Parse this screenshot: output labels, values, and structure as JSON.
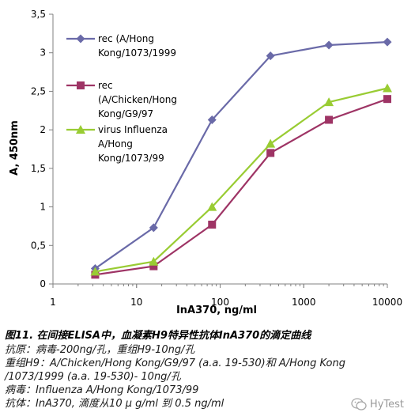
{
  "chart_data": {
    "type": "line",
    "xscale": "log",
    "xlabel": "InA370, ng/ml",
    "ylabel": "A, 450nm",
    "xlim": [
      1,
      10000
    ],
    "ylim": [
      0,
      3.5
    ],
    "x_ticks": [
      1,
      10,
      100,
      1000,
      10000
    ],
    "x_tick_labels": [
      "1",
      "10",
      "100",
      "1000",
      "10000"
    ],
    "y_ticks": [
      0,
      0.5,
      1,
      1.5,
      2,
      2.5,
      3,
      3.5
    ],
    "y_tick_labels": [
      "0",
      "0,5",
      "1",
      "1,5",
      "2",
      "2,5",
      "3",
      "3,5"
    ],
    "legend_position": "top-left",
    "series": [
      {
        "name": "rec (A/Hong Kong/1073/1999",
        "legend_lines": [
          "rec (A/Hong",
          "Kong/1073/1999"
        ],
        "color": "#6a6aa8",
        "marker": "diamond",
        "x": [
          3.2,
          16,
          80,
          400,
          2000,
          10000
        ],
        "y": [
          0.2,
          0.73,
          2.13,
          2.96,
          3.1,
          3.14
        ]
      },
      {
        "name": "rec (A/Chicken/Hong Kong/G9/97",
        "legend_lines": [
          "rec",
          "(A/Chicken/Hong",
          "Kong/G9/97"
        ],
        "color": "#9e3465",
        "marker": "square",
        "x": [
          3.2,
          16,
          80,
          400,
          2000,
          10000
        ],
        "y": [
          0.12,
          0.23,
          0.77,
          1.7,
          2.13,
          2.4
        ]
      },
      {
        "name": "virus Influenza A/Hong Kong/1073/99",
        "legend_lines": [
          "virus Influenza",
          "A/Hong",
          "Kong/1073/99"
        ],
        "color": "#99cc33",
        "marker": "triangle",
        "x": [
          3.2,
          16,
          80,
          400,
          2000,
          10000
        ],
        "y": [
          0.16,
          0.29,
          1.0,
          1.82,
          2.36,
          2.54
        ]
      }
    ]
  },
  "caption": {
    "title": "图11. 在间接ELISA中，血凝素H9特异性抗体InA370的滴定曲线",
    "lines": [
      "抗原：病毒-200ng/孔，重组H9-10ng/孔",
      "重组H9：A/Chicken/Hong Kong/G9/97 (a.a. 19-530)和 A/Hong Kong",
      "/1073/1999 (a.a. 19-530)- 10ng/孔",
      "病毒：Influenza A/Hong Kong/1073/99",
      "抗体：InA370, 滴度从10  μ g/ml 到 0.5 ng/ml"
    ]
  },
  "watermark": {
    "text": "HyTest",
    "icon": "wechat-icon"
  }
}
